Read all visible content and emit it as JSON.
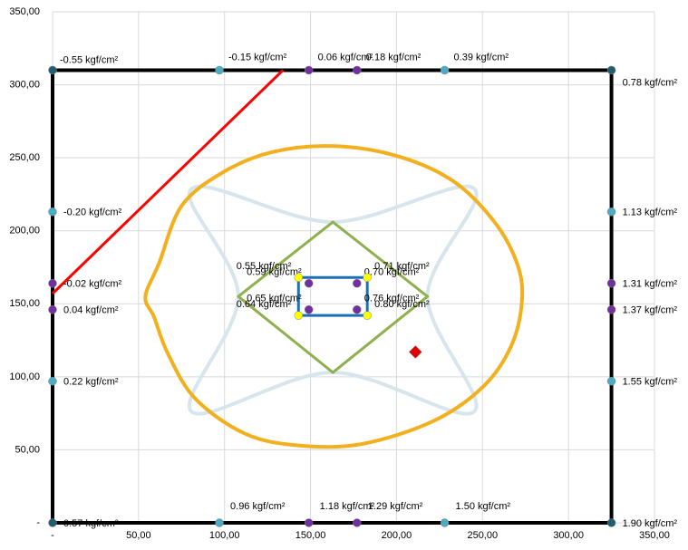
{
  "chart_data": {
    "type": "scatter",
    "xlim": [
      0,
      350
    ],
    "ylim": [
      0,
      350
    ],
    "xticks": [
      {
        "value": 0,
        "label": "-"
      },
      {
        "value": 50,
        "label": "50,00"
      },
      {
        "value": 100,
        "label": "100,00"
      },
      {
        "value": 150,
        "label": "150,00"
      },
      {
        "value": 200,
        "label": "200,00"
      },
      {
        "value": 250,
        "label": "250,00"
      },
      {
        "value": 300,
        "label": "300,00"
      },
      {
        "value": 350,
        "label": "350,00"
      }
    ],
    "yticks": [
      {
        "value": 0,
        "label": "-"
      },
      {
        "value": 50,
        "label": "50,00"
      },
      {
        "value": 100,
        "label": "100,00"
      },
      {
        "value": 150,
        "label": "150,00"
      },
      {
        "value": 200,
        "label": "200,00"
      },
      {
        "value": 250,
        "label": "250,00"
      },
      {
        "value": 300,
        "label": "300,00"
      },
      {
        "value": 350,
        "label": "350,00"
      }
    ],
    "grid": true,
    "series": [
      {
        "mode": "line",
        "smooth": true,
        "closed": true,
        "color": "#d6e6ec",
        "width": 4,
        "x": [
          81,
          163,
          245,
          218,
          245,
          163,
          81,
          108
        ],
        "y": [
          229,
          206,
          229,
          155,
          76,
          103,
          76,
          155
        ]
      },
      {
        "mode": "line",
        "smooth": true,
        "closed": true,
        "color": "#f2b01e",
        "width": 4,
        "x": [
          54,
          62,
          75,
          99,
          128,
          164,
          201,
          233,
          257,
          270,
          273,
          267,
          251,
          222,
          180,
          143,
          112,
          83,
          67,
          59
        ],
        "y": [
          155,
          178,
          217,
          240,
          254,
          258,
          251,
          234,
          206,
          178,
          153,
          122,
          94,
          70,
          54,
          53,
          61,
          85,
          116,
          141
        ]
      },
      {
        "mode": "line",
        "smooth": false,
        "closed": true,
        "color": "#8fb04e",
        "width": 3,
        "x": [
          163,
          218,
          163,
          108
        ],
        "y": [
          206,
          155,
          103,
          155
        ]
      },
      {
        "mode": "line",
        "smooth": false,
        "closed": true,
        "color": "#1f6fb5",
        "width": 3,
        "x": [
          143,
          183,
          183,
          143
        ],
        "y": [
          168,
          168,
          142,
          142
        ]
      },
      {
        "mode": "line",
        "smooth": false,
        "closed": true,
        "color": "#000000",
        "width": 4,
        "x": [
          0,
          325,
          325,
          0
        ],
        "y": [
          0,
          0,
          310,
          310
        ]
      },
      {
        "mode": "line",
        "smooth": false,
        "closed": false,
        "color": "#ff0000",
        "width": 3,
        "x": [
          0,
          134
        ],
        "y": [
          157,
          310
        ]
      },
      {
        "mode": "markers",
        "marker": "circle",
        "color": "#1f5f6f",
        "x": [
          0,
          325,
          0,
          325
        ],
        "y": [
          310,
          310,
          0,
          0
        ],
        "labels": [
          "-0.55 kgf/cm²",
          "0.78 kgf/cm²",
          "0.57 kgf/cm²",
          "1.90 kgf/cm²"
        ]
      },
      {
        "mode": "markers",
        "marker": "circle",
        "color": "#4bacc6",
        "x": [
          97,
          228,
          0,
          0,
          97,
          228,
          325,
          325
        ],
        "y": [
          310,
          310,
          213,
          97,
          0,
          0,
          213,
          97
        ],
        "labels": [
          "-0.15 kgf/cm²",
          "0.39 kgf/cm²",
          "-0.20 kgf/cm²",
          "0.22 kgf/cm²",
          "0.96 kgf/cm²",
          "1.50 kgf/cm²",
          "1.13 kgf/cm²",
          "1.55 kgf/cm²"
        ]
      },
      {
        "mode": "markers",
        "marker": "circle",
        "color": "#7030a0",
        "x": [
          149,
          177,
          0,
          0,
          149,
          177,
          325,
          325,
          149,
          177,
          149,
          177
        ],
        "y": [
          310,
          310,
          164,
          146,
          0,
          0,
          164,
          146,
          164,
          164,
          146,
          146
        ],
        "labels": [
          "0.06 kgf/cm²",
          "0.18 kgf/cm²",
          "-0.02 kgf/cm²",
          "0.04 kgf/cm²",
          "1.18 kgf/cm²",
          "1.29 kgf/cm²",
          "1.31 kgf/cm²",
          "1.37 kgf/cm²",
          "0.59 kgf/cm²",
          "0.70 kgf/cm²",
          "0.65 kgf/cm²",
          "0.76 kgf/cm²"
        ]
      },
      {
        "mode": "markers",
        "marker": "circle",
        "color": "#ffff00",
        "x": [
          143,
          183,
          143,
          183
        ],
        "y": [
          168,
          168,
          142,
          142
        ],
        "labels": [
          "0.55 kgf/cm²",
          "0.71 kgf/cm²",
          "0.64 kgf/cm²",
          "0.80 kgf/cm²"
        ]
      },
      {
        "mode": "markers",
        "marker": "diamond",
        "color": "#e00000",
        "x": [
          211
        ],
        "y": [
          117
        ]
      }
    ]
  }
}
